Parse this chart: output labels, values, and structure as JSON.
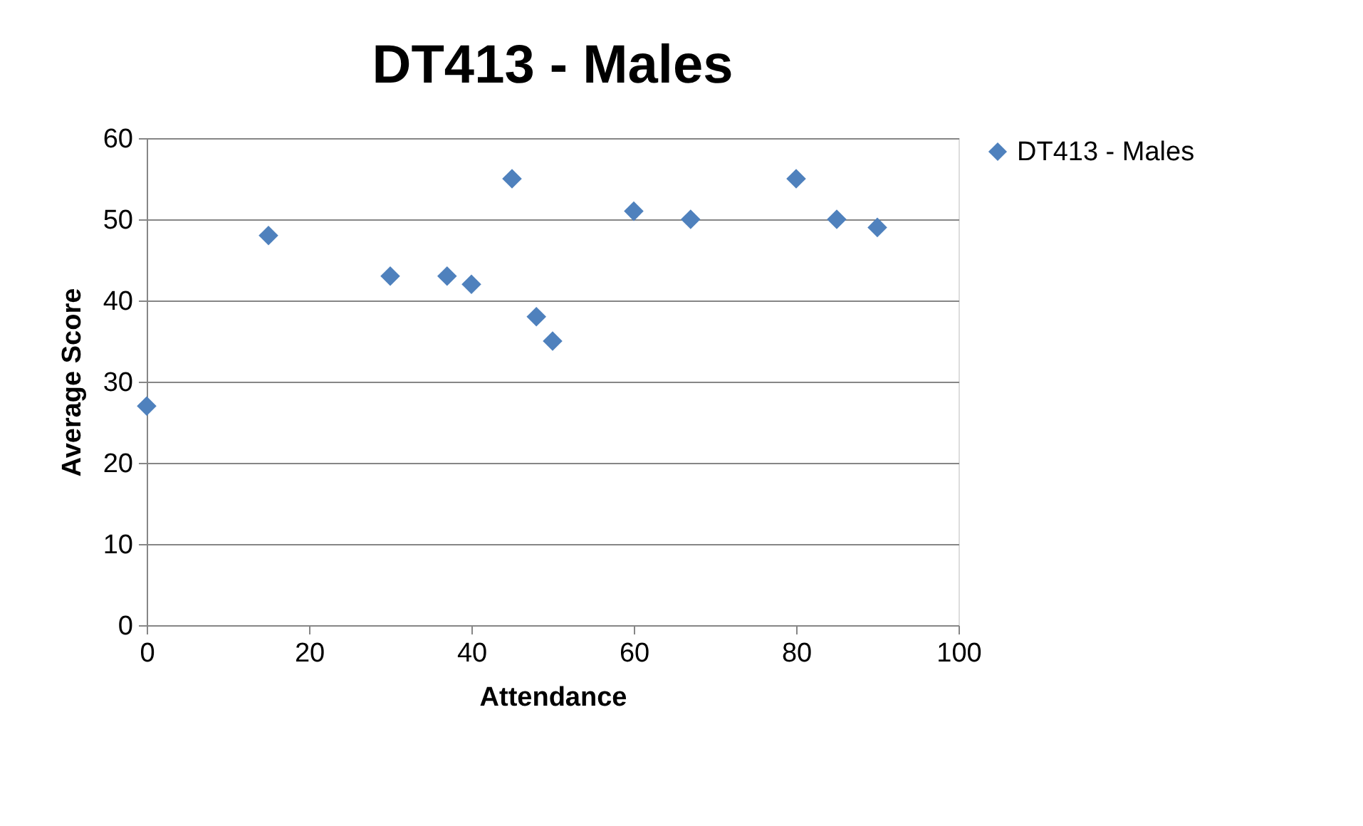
{
  "chart_data": {
    "type": "scatter",
    "title": "DT413 - Males",
    "xlabel": "Attendance",
    "ylabel": "Average Score",
    "x": [
      0,
      15,
      30,
      37,
      40,
      45,
      48,
      50,
      60,
      67,
      80,
      85,
      90
    ],
    "series": [
      {
        "name": "DT413 - Males",
        "color": "#4f81bd",
        "values": [
          27,
          48,
          43,
          43,
          42,
          55,
          38,
          35,
          51,
          50,
          55,
          50,
          49
        ]
      }
    ],
    "xlim": [
      0,
      100
    ],
    "xticks": [
      0,
      20,
      40,
      60,
      80,
      100
    ],
    "ylim": [
      0,
      60
    ],
    "yticks": [
      0,
      10,
      20,
      30,
      40,
      50,
      60
    ],
    "grid": "y",
    "legend": "right",
    "marker": "diamond"
  }
}
